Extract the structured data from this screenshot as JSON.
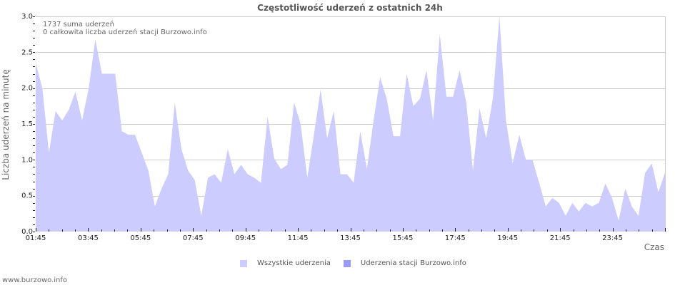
{
  "title": "Częstotliwość uderzeń z ostatnich 24h",
  "info": {
    "line1": "1737 suma uderzeń",
    "line2": "0 całkowita liczba uderzeń stacji Burzowo.info"
  },
  "axes": {
    "ylabel": "Liczba uderzeń na minutę",
    "xlabel": "Czas",
    "yticks": [
      "0.0",
      "0.5",
      "1.0",
      "1.5",
      "2.0",
      "2.5",
      "3.0"
    ],
    "xticks": [
      "01:45",
      "03:45",
      "05:45",
      "07:45",
      "09:45",
      "11:45",
      "13:45",
      "15:45",
      "17:45",
      "19:45",
      "21:45",
      "23:45"
    ]
  },
  "legend": [
    {
      "label": "Wszystkie uderzenia",
      "color": "#ccccff"
    },
    {
      "label": "Uderzenia stacji Burzowo.info",
      "color": "#9999ff"
    }
  ],
  "footer": "www.burzowo.info",
  "colors": {
    "area": "#ccccff",
    "station": "#9999ff",
    "grid": "#cccccc",
    "frame": "#cccccc"
  },
  "chart_data": {
    "type": "area",
    "title": "Częstotliwość uderzeń z ostatnich 24h",
    "xlabel": "Czas",
    "ylabel": "Liczba uderzeń na minutę",
    "ylim": [
      0,
      3.0
    ],
    "xrange": [
      "01:45",
      "01:45 (+1d)"
    ],
    "grid": true,
    "legend_position": "bottom",
    "interval_minutes": 15,
    "series": [
      {
        "name": "Wszystkie uderzenia",
        "values": [
          2.35,
          2.0,
          1.1,
          1.68,
          1.55,
          1.7,
          1.95,
          1.55,
          2.0,
          2.68,
          2.2,
          2.2,
          2.2,
          1.4,
          1.35,
          1.35,
          1.1,
          0.85,
          0.35,
          0.6,
          0.8,
          1.8,
          1.15,
          0.85,
          0.72,
          0.22,
          0.75,
          0.8,
          0.68,
          1.15,
          0.8,
          0.93,
          0.8,
          0.75,
          0.68,
          1.6,
          1.02,
          0.87,
          0.93,
          1.8,
          1.5,
          0.75,
          1.35,
          1.98,
          1.3,
          1.68,
          0.8,
          0.8,
          0.68,
          1.4,
          0.87,
          1.55,
          2.15,
          1.85,
          1.33,
          1.33,
          2.2,
          1.75,
          1.85,
          2.25,
          1.55,
          2.75,
          1.88,
          1.88,
          2.25,
          1.8,
          0.85,
          1.72,
          1.3,
          1.85,
          3.0,
          1.55,
          0.95,
          1.35,
          1.0,
          1.0,
          0.68,
          0.35,
          0.47,
          0.4,
          0.22,
          0.4,
          0.28,
          0.4,
          0.35,
          0.4,
          0.67,
          0.47,
          0.15,
          0.6,
          0.35,
          0.22,
          0.82,
          0.95,
          0.55,
          0.82
        ]
      },
      {
        "name": "Uderzenia stacji Burzowo.info",
        "values": []
      }
    ]
  }
}
